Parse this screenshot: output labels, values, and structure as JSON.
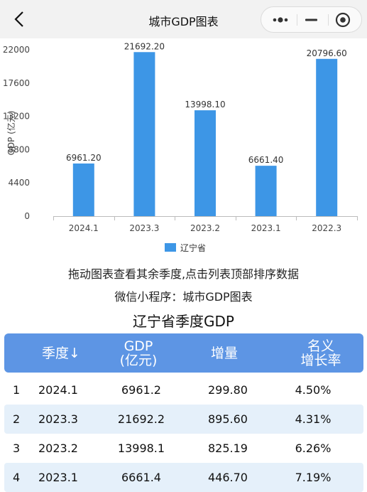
{
  "titlebar": {
    "title": "城市GDP图表"
  },
  "chart_data": {
    "type": "bar",
    "categories": [
      "2024.1",
      "2023.3",
      "2023.2",
      "2023.1",
      "2022.3"
    ],
    "series": [
      {
        "name": "辽宁省",
        "values": [
          6961.2,
          21692.2,
          13998.1,
          6661.4,
          20796.6
        ],
        "labels": [
          "6961.20",
          "21692.20",
          "13998.10",
          "6661.40",
          "20796.60"
        ]
      }
    ],
    "ylabel": "GDP (亿元)",
    "ylim": [
      0,
      22000
    ],
    "yticks": [
      "22000",
      "17600",
      "13200",
      "8800",
      "4400",
      "0"
    ],
    "grid": false,
    "legend": "bottom-center",
    "bar_color": "#3d96e6"
  },
  "hints": {
    "drag": "拖动图表查看其余季度,点击列表顶部排序数据",
    "miniprogram": "微信小程序：城市GDP图表"
  },
  "table": {
    "title": "辽宁省季度GDP",
    "headers": {
      "quarter": "季度↓",
      "gdp_line1": "GDP",
      "gdp_line2": "(亿元)",
      "increase": "增量",
      "rate_line1": "名义",
      "rate_line2": "增长率"
    },
    "rows": [
      {
        "index": "1",
        "quarter": "2024.1",
        "gdp": "6961.2",
        "increase": "299.80",
        "rate": "4.50%"
      },
      {
        "index": "2",
        "quarter": "2023.3",
        "gdp": "21692.2",
        "increase": "895.60",
        "rate": "4.31%"
      },
      {
        "index": "3",
        "quarter": "2023.2",
        "gdp": "13998.1",
        "increase": "825.19",
        "rate": "6.26%"
      },
      {
        "index": "4",
        "quarter": "2023.1",
        "gdp": "6661.4",
        "increase": "446.70",
        "rate": "7.19%"
      }
    ]
  },
  "colors": {
    "header_bg": "#5d95e4",
    "row_alt": "#e5f0fa",
    "bar": "#3d96e6"
  }
}
